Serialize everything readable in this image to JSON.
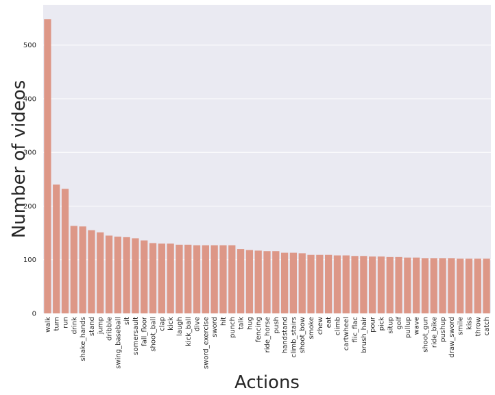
{
  "chart_data": {
    "type": "bar",
    "title": "",
    "xlabel": "Actions",
    "ylabel": "Number of videos",
    "ylim": [
      0,
      575
    ],
    "yticks": [
      0,
      100,
      200,
      300,
      400,
      500
    ],
    "grid": true,
    "bar_color": "#dd9787",
    "background_color": "#eaeaf2",
    "grid_color": "#ffffff",
    "categories": [
      "walk",
      "turn",
      "run",
      "drink",
      "shake_hands",
      "stand",
      "jump",
      "dribble",
      "swing_baseball",
      "sit",
      "somersault",
      "fall_floor",
      "shoot_ball",
      "clap",
      "kick",
      "laugh",
      "kick_ball",
      "dive",
      "sword_exercise",
      "sword",
      "hit",
      "punch",
      "talk",
      "hug",
      "fencing",
      "ride_horse",
      "push",
      "handstand",
      "climb_stairs",
      "shoot_bow",
      "smoke",
      "chew",
      "eat",
      "climb",
      "cartwheel",
      "flic_flac",
      "brush_hair",
      "pour",
      "pick",
      "situp",
      "golf",
      "pullup",
      "wave",
      "shoot_gun",
      "ride_bike",
      "pushup",
      "draw_sword",
      "smile",
      "kiss",
      "throw",
      "catch"
    ],
    "values": [
      548,
      240,
      232,
      163,
      162,
      155,
      151,
      145,
      143,
      142,
      140,
      136,
      131,
      130,
      130,
      128,
      128,
      127,
      127,
      127,
      127,
      127,
      120,
      118,
      117,
      116,
      116,
      113,
      113,
      112,
      109,
      109,
      109,
      108,
      108,
      107,
      107,
      106,
      106,
      105,
      105,
      104,
      104,
      103,
      103,
      103,
      103,
      102,
      102,
      102,
      102
    ]
  }
}
